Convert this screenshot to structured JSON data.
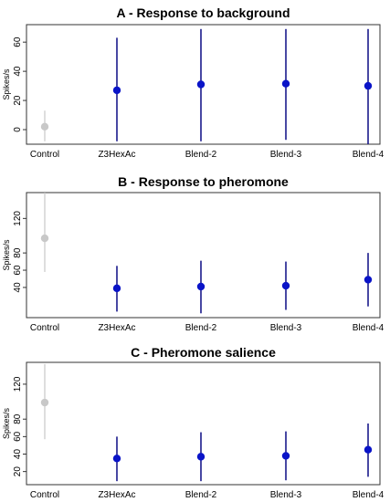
{
  "chart_data": [
    {
      "type": "scatter",
      "title": "A - Response to background",
      "ylabel": "Spikes/s",
      "xlabel": "",
      "categories": [
        "Control",
        "Z3HexAc",
        "Blend-2",
        "Blend-3",
        "Blend-4"
      ],
      "values": [
        2,
        27,
        31,
        31.5,
        30
      ],
      "lower": [
        -8,
        -8,
        -8,
        -7,
        -10
      ],
      "upper": [
        13,
        63,
        69,
        69,
        69
      ],
      "yticks": [
        0,
        20,
        40,
        60
      ],
      "ylim": [
        -10,
        72
      ],
      "grid": false,
      "colors": [
        "#c8c8c8",
        "#0a14c8",
        "#0a14c8",
        "#0a14c8",
        "#0a14c8"
      ]
    },
    {
      "type": "scatter",
      "title": "B - Response to pheromone",
      "ylabel": "Spikes/s",
      "xlabel": "",
      "categories": [
        "Control",
        "Z3HexAc",
        "Blend-2",
        "Blend-3",
        "Blend-4"
      ],
      "values": [
        97,
        39,
        41,
        42,
        49
      ],
      "lower": [
        58,
        12,
        10,
        14,
        18
      ],
      "upper": [
        150,
        65,
        71,
        70,
        80
      ],
      "yticks": [
        40,
        60,
        80,
        120
      ],
      "ylim": [
        5,
        150
      ],
      "grid": false,
      "colors": [
        "#c8c8c8",
        "#0a14c8",
        "#0a14c8",
        "#0a14c8",
        "#0a14c8"
      ]
    },
    {
      "type": "scatter",
      "title": "C - Pheromone salience",
      "ylabel": "Spikes/s",
      "xlabel": "",
      "categories": [
        "Control",
        "Z3HexAc",
        "Blend-2",
        "Blend-3",
        "Blend-4"
      ],
      "values": [
        99,
        35,
        37,
        38,
        45
      ],
      "lower": [
        57,
        9,
        9,
        10,
        14
      ],
      "upper": [
        143,
        60,
        65,
        66,
        75
      ],
      "yticks": [
        20,
        40,
        60,
        80,
        120
      ],
      "ylim": [
        5,
        145
      ],
      "grid": false,
      "colors": [
        "#c8c8c8",
        "#0a14c8",
        "#0a14c8",
        "#0a14c8",
        "#0a14c8"
      ]
    }
  ]
}
